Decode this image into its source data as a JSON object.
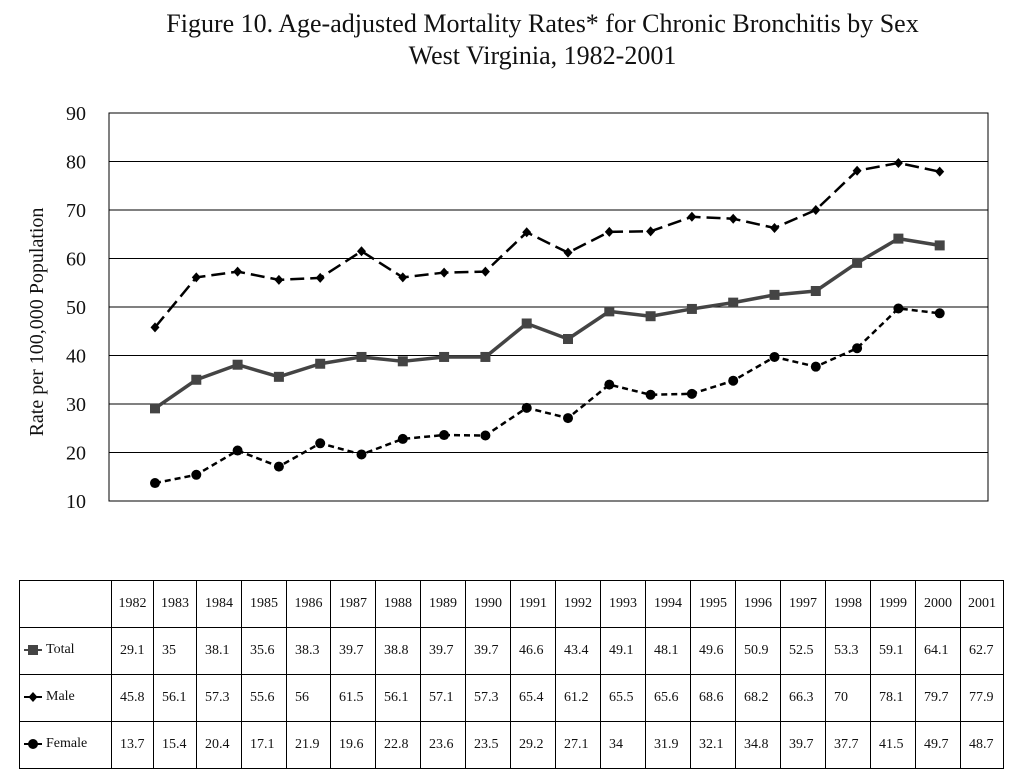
{
  "chart_data": {
    "type": "line",
    "title": "Figure 10.  Age-adjusted Mortality Rates* for Chronic Bronchitis by Sex",
    "subtitle": "West Virginia, 1982-2001",
    "xlabel": "",
    "ylabel": "Rate per 100,000 Population",
    "ylim": [
      10,
      90
    ],
    "yticks": [
      10,
      20,
      30,
      40,
      50,
      60,
      70,
      80,
      90
    ],
    "grid": true,
    "categories": [
      "1982",
      "1983",
      "1984",
      "1985",
      "1986",
      "1987",
      "1988",
      "1989",
      "1990",
      "1991",
      "1992",
      "1993",
      "1994",
      "1995",
      "1996",
      "1997",
      "1998",
      "1999",
      "2000",
      "2001"
    ],
    "series": [
      {
        "name": "Total",
        "marker": "square",
        "style": "solid",
        "color": "#444444",
        "values": [
          29.1,
          35,
          38.1,
          35.6,
          38.3,
          39.7,
          38.8,
          39.7,
          39.7,
          46.6,
          43.4,
          49.1,
          48.1,
          49.6,
          50.9,
          52.5,
          53.3,
          59.1,
          64.1,
          62.7
        ],
        "labels": [
          "29.1",
          "35",
          "38.1",
          "35.6",
          "38.3",
          "39.7",
          "38.8",
          "39.7",
          "39.7",
          "46.6",
          "43.4",
          "49.1",
          "48.1",
          "49.6",
          "50.9",
          "52.5",
          "53.3",
          "59.1",
          "64.1",
          "62.7"
        ]
      },
      {
        "name": "Male",
        "marker": "diamond",
        "style": "long-dash",
        "color": "#000000",
        "values": [
          45.8,
          56.1,
          57.3,
          55.6,
          56,
          61.5,
          56.1,
          57.1,
          57.3,
          65.4,
          61.2,
          65.5,
          65.6,
          68.6,
          68.2,
          66.3,
          70,
          78.1,
          79.7,
          77.9
        ],
        "labels": [
          "45.8",
          "56.1",
          "57.3",
          "55.6",
          "56",
          "61.5",
          "56.1",
          "57.1",
          "57.3",
          "65.4",
          "61.2",
          "65.5",
          "65.6",
          "68.6",
          "68.2",
          "66.3",
          "70",
          "78.1",
          "79.7",
          "77.9"
        ]
      },
      {
        "name": "Female",
        "marker": "circle",
        "style": "short-dash",
        "color": "#000000",
        "values": [
          13.7,
          15.4,
          20.4,
          17.1,
          21.9,
          19.6,
          22.8,
          23.6,
          23.5,
          29.2,
          27.1,
          34,
          31.9,
          32.1,
          34.8,
          39.7,
          37.7,
          41.5,
          49.7,
          48.7
        ],
        "labels": [
          "13.7",
          "15.4",
          "20.4",
          "17.1",
          "21.9",
          "19.6",
          "22.8",
          "23.6",
          "23.5",
          "29.2",
          "27.1",
          "34",
          "31.9",
          "32.1",
          "34.8",
          "39.7",
          "37.7",
          "41.5",
          "49.7",
          "48.7"
        ]
      }
    ]
  }
}
